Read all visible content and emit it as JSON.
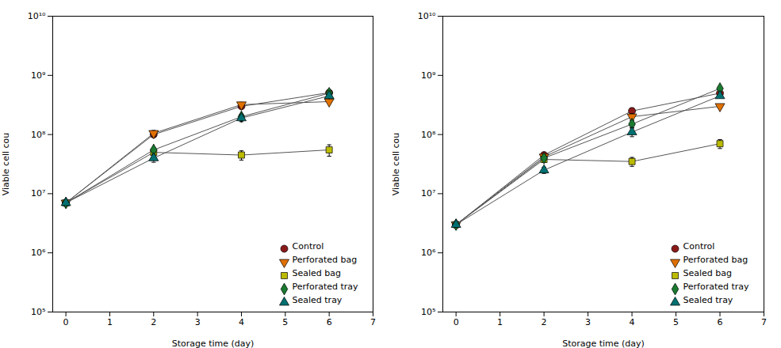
{
  "chart_data": [
    {
      "type": "line",
      "xlabel": "Storage time (day)",
      "ylabel": "Viable cell cou",
      "x": [
        0,
        2,
        4,
        6
      ],
      "series": [
        {
          "name": "Control",
          "color": "#8B1A1A",
          "marker": "circle",
          "values": [
            7000000.0,
            100000000.0,
            300000000.0,
            510000000.0
          ],
          "yerr": [
            400000.0,
            10000000.0,
            25000000.0,
            15000000.0
          ]
        },
        {
          "name": "Perforated bag",
          "color": "#E07000",
          "marker": "triangle-down",
          "values": [
            7000000.0,
            105000000.0,
            320000000.0,
            360000000.0
          ],
          "yerr": [
            400000.0,
            12000000.0,
            30000000.0,
            20000000.0
          ]
        },
        {
          "name": "Sealed bag",
          "color": "#BBBB00",
          "marker": "square",
          "values": [
            7000000.0,
            50000000.0,
            45000000.0,
            55000000.0
          ],
          "yerr": [
            400000.0,
            5000000.0,
            8000000.0,
            12000000.0
          ]
        },
        {
          "name": "Perforated tray",
          "color": "#1A7A30",
          "marker": "diamond",
          "values": [
            7000000.0,
            55000000.0,
            200000000.0,
            500000000.0
          ],
          "yerr": [
            400000.0,
            5000000.0,
            20000000.0,
            15000000.0
          ]
        },
        {
          "name": "Sealed tray",
          "color": "#007070",
          "marker": "triangle-up",
          "values": [
            7000000.0,
            40000000.0,
            190000000.0,
            450000000.0
          ],
          "yerr": [
            400000.0,
            6000000.0,
            25000000.0,
            20000000.0
          ]
        }
      ],
      "log": "y",
      "xlim": [
        -0.3,
        7
      ],
      "xticks": [
        0,
        1,
        2,
        3,
        4,
        5,
        6,
        7
      ],
      "ylim": [
        100000.0,
        10000000000.0
      ],
      "yticks": [
        {
          "value": 100000.0,
          "label": "10⁵"
        },
        {
          "value": 1000000.0,
          "label": "10⁶"
        },
        {
          "value": 10000000.0,
          "label": "10⁷"
        },
        {
          "value": 100000000.0,
          "label": "10⁸"
        },
        {
          "value": 1000000000.0,
          "label": "10⁹"
        },
        {
          "value": 10000000000.0,
          "label": "10¹⁰"
        }
      ],
      "grid": false,
      "legend": "lower right"
    },
    {
      "type": "line",
      "xlabel": "Storage time (day)",
      "ylabel": "Viable cell cou",
      "x": [
        0,
        2,
        4,
        6
      ],
      "series": [
        {
          "name": "Control",
          "color": "#8B1A1A",
          "marker": "circle",
          "values": [
            3000000.0,
            45000000.0,
            250000000.0,
            500000000.0
          ],
          "yerr": [
            200000.0,
            4000000.0,
            30000000.0,
            25000000.0
          ]
        },
        {
          "name": "Perforated bag",
          "color": "#E07000",
          "marker": "triangle-down",
          "values": [
            3000000.0,
            42000000.0,
            200000000.0,
            300000000.0
          ],
          "yerr": [
            200000.0,
            4000000.0,
            25000000.0,
            20000000.0
          ]
        },
        {
          "name": "Sealed bag",
          "color": "#BBBB00",
          "marker": "square",
          "values": [
            3000000.0,
            38000000.0,
            35000000.0,
            70000000.0
          ],
          "yerr": [
            200000.0,
            4000000.0,
            6000000.0,
            12000000.0
          ]
        },
        {
          "name": "Perforated tray",
          "color": "#1A7A30",
          "marker": "diamond",
          "values": [
            3000000.0,
            40000000.0,
            150000000.0,
            600000000.0
          ],
          "yerr": [
            200000.0,
            3000000.0,
            20000000.0,
            20000000.0
          ]
        },
        {
          "name": "Sealed tray",
          "color": "#007070",
          "marker": "triangle-up",
          "values": [
            3000000.0,
            25000000.0,
            110000000.0,
            450000000.0
          ],
          "yerr": [
            200000.0,
            3000000.0,
            18000000.0,
            25000000.0
          ]
        }
      ],
      "log": "y",
      "xlim": [
        -0.3,
        7
      ],
      "xticks": [
        0,
        1,
        2,
        3,
        4,
        5,
        6,
        7
      ],
      "ylim": [
        100000.0,
        10000000000.0
      ],
      "yticks": [
        {
          "value": 100000.0,
          "label": "10⁵"
        },
        {
          "value": 1000000.0,
          "label": "10⁶"
        },
        {
          "value": 10000000.0,
          "label": "10⁷"
        },
        {
          "value": 100000000.0,
          "label": "10⁸"
        },
        {
          "value": 1000000000.0,
          "label": "10⁹"
        },
        {
          "value": 10000000000.0,
          "label": "10¹⁰"
        }
      ],
      "grid": false,
      "legend": "lower right"
    }
  ]
}
